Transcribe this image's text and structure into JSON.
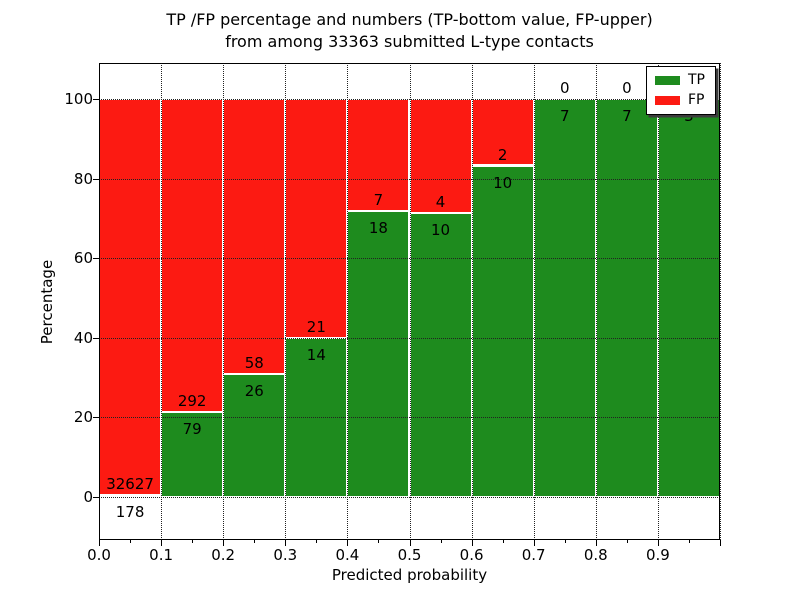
{
  "chart_data": {
    "type": "bar",
    "stacked": true,
    "title_line1": "TP /FP percentage and numbers (TP-bottom value, FP-upper)",
    "title_line2": "from among 33363 submitted L-type contacts",
    "xlabel": "Predicted probability",
    "ylabel": "Percentage",
    "bin_edges": [
      0.0,
      0.1,
      0.2,
      0.3,
      0.4,
      0.5,
      0.6,
      0.7,
      0.8,
      0.9,
      1.0
    ],
    "x_tick_labels": [
      "0.0",
      "0.1",
      "0.2",
      "0.3",
      "0.4",
      "0.5",
      "0.6",
      "0.7",
      "0.8",
      "0.9"
    ],
    "y_tick_labels": [
      "0",
      "20",
      "40",
      "60",
      "80",
      "100"
    ],
    "y_tick_values": [
      0,
      20,
      40,
      60,
      80,
      100
    ],
    "ylim": [
      -10.9,
      109.1
    ],
    "grid": "dotted",
    "bar_unit": "percentage of bin total",
    "series": [
      {
        "name": "TP",
        "color": "#1e8b1e",
        "values": [
          178,
          79,
          26,
          14,
          18,
          10,
          10,
          7,
          7,
          3
        ]
      },
      {
        "name": "FP",
        "color": "#fc1a12",
        "values": [
          32627,
          292,
          58,
          21,
          7,
          4,
          2,
          0,
          0,
          0
        ]
      }
    ],
    "bar_labels": [
      {
        "tp": "178",
        "fp": "32627"
      },
      {
        "tp": "79",
        "fp": "292"
      },
      {
        "tp": "26",
        "fp": "58"
      },
      {
        "tp": "14",
        "fp": "21"
      },
      {
        "tp": "18",
        "fp": "7"
      },
      {
        "tp": "10",
        "fp": "4"
      },
      {
        "tp": "10",
        "fp": "2"
      },
      {
        "tp": "7",
        "fp": "0"
      },
      {
        "tp": "7",
        "fp": "0"
      },
      {
        "tp": "3",
        "fp": ""
      }
    ],
    "legend": {
      "position": "upper-right",
      "entries": [
        {
          "label": "TP",
          "color": "#1e8b1e"
        },
        {
          "label": "FP",
          "color": "#fc1a12"
        }
      ]
    }
  }
}
